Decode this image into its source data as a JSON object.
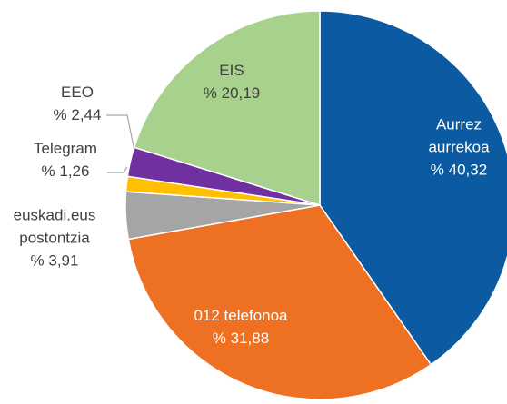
{
  "chart_data": {
    "type": "pie",
    "categories": [
      "Aurrez aurrekoa",
      "012 telefonoa",
      "euskadi.eus postontzia",
      "Telegram",
      "EEO",
      "EIS"
    ],
    "values": [
      40.32,
      31.88,
      3.91,
      1.26,
      2.44,
      20.19
    ],
    "value_labels": [
      "% 40,32",
      "% 31,88",
      "% 3,91",
      "% 1,26",
      "% 2,44",
      "% 20,19"
    ],
    "colors": [
      "#0b5aa2",
      "#ee7023",
      "#a5a5a5",
      "#ffc000",
      "#7030a0",
      "#a9d18e"
    ]
  }
}
